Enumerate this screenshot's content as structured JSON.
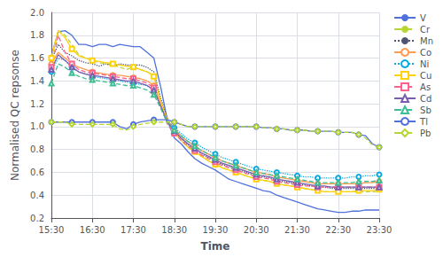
{
  "chart_data": {
    "type": "line",
    "xlabel": "Time",
    "ylabel": "Normalised QC repsonse",
    "categories": [
      "15:30",
      null,
      null,
      null,
      null,
      null,
      "16:30",
      null,
      null,
      null,
      null,
      null,
      "17:30",
      null,
      null,
      null,
      null,
      null,
      "18:30",
      null,
      null,
      null,
      null,
      null,
      "19:30",
      null,
      null,
      null,
      null,
      null,
      "20:30",
      null,
      null,
      null,
      null,
      null,
      "21:30",
      null,
      null,
      null,
      null,
      null,
      "22:30",
      null,
      null,
      null,
      null,
      null,
      "23:30"
    ],
    "ylim": [
      0.2,
      2.0
    ],
    "yticks": [
      0.2,
      0.4,
      0.6,
      0.8,
      {
        "value": 1.0,
        "label": "1.0"
      },
      1.2,
      1.4,
      1.6,
      1.8,
      {
        "value": 2.0,
        "label": "2.0"
      }
    ],
    "grid": true,
    "legend": "right",
    "series": [
      {
        "name": "V",
        "marker": "none",
        "line_style": "solid",
        "values": [
          1.62,
          1.83,
          1.84,
          1.8,
          1.72,
          1.72,
          1.7,
          1.72,
          1.72,
          1.7,
          1.72,
          1.71,
          1.7,
          1.7,
          1.65,
          1.6,
          1.35,
          1.05,
          0.9,
          0.85,
          0.78,
          0.72,
          0.68,
          0.65,
          0.62,
          0.58,
          0.54,
          0.52,
          0.5,
          0.48,
          0.46,
          0.44,
          0.43,
          0.4,
          0.38,
          0.36,
          0.34,
          0.32,
          0.3,
          0.28,
          0.27,
          0.26,
          0.25,
          0.25,
          0.26,
          0.26,
          0.27,
          0.27,
          0.27
        ]
      },
      {
        "name": "Cr",
        "marker": "none",
        "line_style": "dashed",
        "values": [
          1.6,
          1.84,
          1.8,
          1.72,
          1.63,
          1.6,
          1.58,
          1.56,
          1.55,
          1.54,
          1.52,
          1.5,
          1.52,
          1.5,
          1.48,
          1.45,
          1.22,
          1.05,
          0.95,
          0.88,
          0.82,
          0.78,
          0.74,
          0.7,
          0.68,
          0.64,
          0.62,
          0.6,
          0.58,
          0.56,
          0.54,
          0.53,
          0.52,
          0.5,
          0.49,
          0.48,
          0.47,
          0.46,
          0.45,
          0.44,
          0.43,
          0.43,
          0.43,
          0.43,
          0.43,
          0.43,
          0.43,
          0.43,
          0.43
        ]
      },
      {
        "name": "Mn",
        "marker": "none",
        "line_style": "dotted",
        "values": [
          1.58,
          1.72,
          1.65,
          1.62,
          1.58,
          1.56,
          1.55,
          1.53,
          1.55,
          1.53,
          1.55,
          1.54,
          1.54,
          1.54,
          1.52,
          1.48,
          1.25,
          1.07,
          0.97,
          0.9,
          0.84,
          0.8,
          0.76,
          0.73,
          0.7,
          0.67,
          0.65,
          0.63,
          0.61,
          0.59,
          0.57,
          0.56,
          0.55,
          0.53,
          0.52,
          0.51,
          0.5,
          0.49,
          0.48,
          0.47,
          0.47,
          0.46,
          0.46,
          0.46,
          0.46,
          0.46,
          0.46,
          0.46,
          0.46
        ]
      },
      {
        "name": "Co",
        "marker": "circle",
        "line_style": "solid",
        "values": [
          1.55,
          1.65,
          1.6,
          1.55,
          1.52,
          1.5,
          1.48,
          1.47,
          1.46,
          1.45,
          1.45,
          1.44,
          1.43,
          1.42,
          1.4,
          1.36,
          1.2,
          1.05,
          0.98,
          0.92,
          0.87,
          0.83,
          0.79,
          0.76,
          0.73,
          0.7,
          0.68,
          0.66,
          0.64,
          0.62,
          0.6,
          0.59,
          0.58,
          0.56,
          0.55,
          0.54,
          0.53,
          0.52,
          0.51,
          0.5,
          0.5,
          0.5,
          0.5,
          0.5,
          0.5,
          0.5,
          0.51,
          0.51,
          0.52
        ]
      },
      {
        "name": "Ni",
        "marker": "circle",
        "line_style": "dotted",
        "values": [
          1.48,
          1.6,
          1.58,
          1.52,
          1.48,
          1.46,
          1.44,
          1.43,
          1.42,
          1.41,
          1.4,
          1.39,
          1.38,
          1.37,
          1.36,
          1.32,
          1.18,
          1.05,
          0.99,
          0.94,
          0.89,
          0.86,
          0.82,
          0.79,
          0.76,
          0.73,
          0.71,
          0.69,
          0.67,
          0.65,
          0.63,
          0.62,
          0.61,
          0.6,
          0.59,
          0.58,
          0.57,
          0.56,
          0.56,
          0.55,
          0.55,
          0.55,
          0.55,
          0.55,
          0.56,
          0.56,
          0.57,
          0.57,
          0.58
        ]
      },
      {
        "name": "Cu",
        "marker": "square",
        "line_style": "solid",
        "values": [
          1.6,
          1.84,
          1.78,
          1.68,
          1.62,
          1.6,
          1.58,
          1.57,
          1.56,
          1.55,
          1.54,
          1.53,
          1.52,
          1.5,
          1.48,
          1.44,
          1.22,
          1.05,
          0.95,
          0.88,
          0.82,
          0.78,
          0.74,
          0.7,
          0.67,
          0.64,
          0.62,
          0.6,
          0.58,
          0.56,
          0.54,
          0.53,
          0.52,
          0.5,
          0.49,
          0.48,
          0.47,
          0.46,
          0.45,
          0.44,
          0.43,
          0.43,
          0.43,
          0.43,
          0.43,
          0.44,
          0.44,
          0.44,
          0.45
        ]
      },
      {
        "name": "As",
        "marker": "square",
        "line_style": "dashed",
        "values": [
          1.52,
          1.8,
          1.65,
          1.55,
          1.5,
          1.48,
          1.47,
          1.46,
          1.45,
          1.44,
          1.43,
          1.42,
          1.42,
          1.4,
          1.38,
          1.34,
          1.18,
          1.02,
          0.94,
          0.88,
          0.83,
          0.79,
          0.75,
          0.72,
          0.69,
          0.66,
          0.64,
          0.62,
          0.6,
          0.58,
          0.56,
          0.55,
          0.54,
          0.52,
          0.51,
          0.5,
          0.49,
          0.48,
          0.48,
          0.47,
          0.47,
          0.47,
          0.47,
          0.47,
          0.47,
          0.47,
          0.47,
          0.47,
          0.47
        ]
      },
      {
        "name": "Cd",
        "marker": "triangle",
        "line_style": "solid",
        "values": [
          1.5,
          1.63,
          1.58,
          1.52,
          1.48,
          1.46,
          1.45,
          1.44,
          1.43,
          1.42,
          1.41,
          1.4,
          1.4,
          1.38,
          1.36,
          1.32,
          1.18,
          1.04,
          0.96,
          0.9,
          0.85,
          0.81,
          0.77,
          0.74,
          0.71,
          0.68,
          0.66,
          0.64,
          0.62,
          0.6,
          0.58,
          0.57,
          0.56,
          0.54,
          0.53,
          0.52,
          0.51,
          0.5,
          0.49,
          0.48,
          0.48,
          0.47,
          0.47,
          0.47,
          0.47,
          0.47,
          0.47,
          0.47,
          0.47
        ]
      },
      {
        "name": "Sb",
        "marker": "triangle",
        "line_style": "dashed",
        "values": [
          1.38,
          1.55,
          1.52,
          1.47,
          1.44,
          1.42,
          1.41,
          1.4,
          1.39,
          1.38,
          1.37,
          1.36,
          1.36,
          1.34,
          1.32,
          1.28,
          1.16,
          1.03,
          0.97,
          0.92,
          0.87,
          0.83,
          0.79,
          0.76,
          0.73,
          0.7,
          0.68,
          0.66,
          0.64,
          0.62,
          0.6,
          0.59,
          0.58,
          0.57,
          0.56,
          0.55,
          0.54,
          0.53,
          0.52,
          0.51,
          0.51,
          0.51,
          0.51,
          0.51,
          0.51,
          0.52,
          0.52,
          0.52,
          0.53
        ]
      },
      {
        "name": "Tl",
        "marker": "circle",
        "line_style": "solid",
        "values": [
          1.04,
          1.04,
          1.04,
          1.04,
          1.04,
          1.04,
          1.04,
          1.04,
          1.04,
          1.04,
          1.0,
          0.98,
          1.02,
          1.04,
          1.05,
          1.06,
          1.06,
          1.06,
          1.04,
          1.02,
          1.0,
          1.0,
          1.0,
          1.0,
          1.0,
          1.0,
          1.0,
          1.0,
          1.0,
          1.0,
          1.0,
          0.99,
          0.99,
          0.98,
          0.98,
          0.97,
          0.97,
          0.97,
          0.96,
          0.96,
          0.96,
          0.96,
          0.95,
          0.95,
          0.95,
          0.93,
          0.92,
          0.85,
          0.82
        ]
      },
      {
        "name": "Pb",
        "marker": "diamond",
        "line_style": "dashed",
        "values": [
          1.04,
          1.04,
          1.04,
          1.02,
          1.02,
          1.02,
          1.02,
          1.02,
          1.02,
          1.02,
          0.98,
          0.97,
          1.0,
          1.02,
          1.03,
          1.04,
          1.04,
          1.04,
          1.04,
          1.02,
          1.0,
          1.0,
          1.0,
          1.0,
          1.0,
          1.0,
          1.0,
          1.0,
          1.0,
          1.0,
          1.0,
          0.99,
          0.99,
          0.98,
          0.98,
          0.97,
          0.97,
          0.97,
          0.96,
          0.96,
          0.96,
          0.96,
          0.95,
          0.95,
          0.95,
          0.93,
          0.9,
          0.84,
          0.82
        ]
      }
    ]
  }
}
